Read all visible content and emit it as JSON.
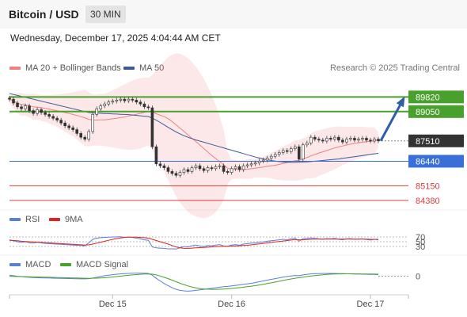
{
  "header": {
    "title": "Bitcoin / USD",
    "timeframe": "30 MIN",
    "datetime": "Wednesday, December 17, 2025 4:04:44 AM CET"
  },
  "main_legend": [
    {
      "label": "MA 20 + Bollinger Bands",
      "color": "#f08080"
    },
    {
      "label": "MA 50",
      "color": "#3c5a99"
    }
  ],
  "credit": "Research © 2025 Trading Central",
  "rsi_legend": [
    {
      "label": "RSI",
      "color": "#5b7fd6"
    },
    {
      "label": "9MA",
      "color": "#dd2222"
    }
  ],
  "macd_legend": [
    {
      "label": "MACD",
      "color": "#5b7fd6"
    },
    {
      "label": "MACD Signal",
      "color": "#4aa02c"
    }
  ],
  "chart_data": [
    {
      "type": "candlestick",
      "x_ticks": [
        "Dec 15",
        "Dec 16",
        "Dec 17"
      ],
      "ylim": [
        84000,
        92500
      ],
      "levels": [
        {
          "value": 89820,
          "label": "89820",
          "kind": "resistance",
          "color": "#4aa02c"
        },
        {
          "value": 89050,
          "label": "89050",
          "kind": "resistance",
          "color": "#4aa02c"
        },
        {
          "value": 87510,
          "label": "87510",
          "kind": "last-price",
          "color": "#333333"
        },
        {
          "value": 86440,
          "label": "86440",
          "kind": "pivot",
          "color": "#3b6fd8"
        },
        {
          "value": 85150,
          "label": "85150",
          "kind": "support",
          "color": "#e03c3c"
        },
        {
          "value": 84380,
          "label": "84380",
          "kind": "support",
          "color": "#e03c3c"
        }
      ],
      "close": [
        89700,
        89500,
        89300,
        89200,
        89350,
        89100,
        88950,
        89150,
        89000,
        88900,
        88800,
        88700,
        88600,
        88450,
        88300,
        88200,
        88100,
        87900,
        87700,
        87600,
        88000,
        88900,
        89200,
        89350,
        89450,
        89550,
        89600,
        89650,
        89700,
        89620,
        89700,
        89650,
        89550,
        89450,
        89300,
        89250,
        87200,
        86300,
        86200,
        86100,
        85900,
        85800,
        85700,
        85850,
        86000,
        85900,
        86100,
        86200,
        86050,
        85950,
        86100,
        86050,
        86150,
        86200,
        85900,
        85850,
        86050,
        86150,
        86000,
        86200,
        86250,
        86300,
        86350,
        86450,
        86500,
        86600,
        86700,
        86800,
        86900,
        87000,
        86950,
        87100,
        87200,
        86550,
        87300,
        87400,
        87700,
        87600,
        87550,
        87500,
        87650,
        87600,
        87700,
        87550,
        87450,
        87600,
        87650,
        87550,
        87600,
        87650,
        87550,
        87500,
        87600,
        87510
      ],
      "projection": {
        "from": 87510,
        "to": 89820
      },
      "ma50": [
        90000,
        89950,
        89900,
        89850,
        89800,
        89750,
        89700,
        89650,
        89600,
        89550,
        89500,
        89450,
        89400,
        89350,
        89300,
        89250,
        89200,
        89150,
        89100,
        89050,
        89000,
        88980,
        88970,
        88960,
        88950,
        88940,
        88930,
        88920,
        88910,
        88900,
        88890,
        88870,
        88850,
        88830,
        88810,
        88790,
        88700,
        88600,
        88480,
        88350,
        88220,
        88100,
        87980,
        87880,
        87780,
        87700,
        87630,
        87560,
        87500,
        87440,
        87380,
        87320,
        87260,
        87200,
        87140,
        87080,
        87020,
        86960,
        86900,
        86840,
        86780,
        86720,
        86660,
        86610,
        86560,
        86520,
        86480,
        86450,
        86420,
        86400,
        86390,
        86380,
        86380,
        86390,
        86400,
        86410,
        86420,
        86440,
        86460,
        86480,
        86500,
        86520,
        86540,
        86560,
        86590,
        86620,
        86650,
        86680,
        86710,
        86740,
        86770,
        86800,
        86830,
        86860
      ]
    },
    {
      "type": "line",
      "name": "RSI",
      "ylim": [
        0,
        100
      ],
      "levels": [
        {
          "value": 70,
          "label": "70"
        },
        {
          "value": 50,
          "label": "50"
        },
        {
          "value": 30,
          "label": "30"
        }
      ],
      "rsi": [
        58,
        54,
        50,
        47,
        50,
        46,
        44,
        48,
        45,
        43,
        42,
        41,
        40,
        39,
        38,
        37,
        36,
        35,
        34,
        33,
        45,
        60,
        65,
        67,
        68,
        69,
        70,
        70,
        71,
        68,
        70,
        68,
        65,
        62,
        58,
        56,
        28,
        24,
        23,
        22,
        20,
        20,
        19,
        25,
        30,
        28,
        33,
        36,
        32,
        30,
        34,
        33,
        36,
        38,
        32,
        31,
        36,
        38,
        35,
        40,
        42,
        44,
        45,
        48,
        49,
        52,
        54,
        56,
        58,
        60,
        58,
        62,
        65,
        52,
        63,
        64,
        66,
        64,
        62,
        60,
        63,
        62,
        64,
        60,
        58,
        62,
        63,
        60,
        61,
        62,
        59,
        57,
        60,
        58
      ],
      "ma9": [
        56,
        55,
        54,
        52,
        51,
        50,
        49,
        48,
        47,
        46,
        45,
        44,
        43,
        42,
        41,
        40,
        39,
        38,
        37,
        36,
        37,
        40,
        44,
        48,
        52,
        56,
        60,
        63,
        66,
        68,
        69,
        69,
        69,
        68,
        67,
        65,
        60,
        55,
        50,
        45,
        40,
        34,
        28,
        24,
        22,
        22,
        23,
        24,
        25,
        26,
        27,
        28,
        29,
        30,
        31,
        31,
        32,
        32,
        33,
        34,
        35,
        37,
        39,
        41,
        43,
        45,
        47,
        49,
        51,
        53,
        55,
        57,
        59,
        58,
        58,
        59,
        60,
        61,
        61,
        61,
        61,
        61,
        61,
        61,
        61,
        61,
        61,
        61,
        61,
        61,
        61,
        60,
        60,
        60
      ]
    },
    {
      "type": "line",
      "name": "MACD",
      "levels": [
        {
          "value": 0,
          "label": "0"
        }
      ],
      "macd": [
        20,
        10,
        0,
        -5,
        -15,
        -20,
        -25,
        -28,
        -30,
        -32,
        -34,
        -36,
        -38,
        -40,
        -42,
        -44,
        -46,
        -48,
        -50,
        -50,
        -45,
        -35,
        -20,
        -5,
        10,
        20,
        30,
        40,
        45,
        50,
        55,
        58,
        60,
        60,
        58,
        55,
        20,
        -40,
        -90,
        -140,
        -180,
        -220,
        -250,
        -270,
        -280,
        -285,
        -280,
        -270,
        -260,
        -250,
        -240,
        -230,
        -220,
        -210,
        -200,
        -195,
        -185,
        -175,
        -165,
        -155,
        -145,
        -135,
        -120,
        -105,
        -90,
        -75,
        -60,
        -45,
        -30,
        -15,
        -5,
        5,
        15,
        10,
        25,
        35,
        45,
        50,
        52,
        54,
        55,
        55,
        54,
        52,
        50,
        48,
        46,
        44,
        42,
        40,
        38,
        36,
        34,
        30
      ],
      "signal": [
        0,
        -2,
        -4,
        -6,
        -8,
        -10,
        -12,
        -14,
        -16,
        -18,
        -20,
        -22,
        -24,
        -26,
        -28,
        -30,
        -32,
        -34,
        -36,
        -38,
        -39,
        -38,
        -36,
        -32,
        -27,
        -21,
        -14,
        -6,
        2,
        10,
        18,
        25,
        32,
        38,
        42,
        45,
        40,
        25,
        5,
        -20,
        -45,
        -75,
        -105,
        -135,
        -160,
        -185,
        -205,
        -222,
        -235,
        -243,
        -248,
        -250,
        -250,
        -248,
        -245,
        -240,
        -234,
        -227,
        -219,
        -210,
        -200,
        -190,
        -179,
        -167,
        -154,
        -140,
        -126,
        -111,
        -96,
        -81,
        -66,
        -52,
        -38,
        -28,
        -17,
        -6,
        4,
        13,
        21,
        28,
        34,
        39,
        42,
        45,
        46,
        47,
        47,
        46,
        45,
        44,
        43,
        42,
        41,
        40
      ]
    }
  ]
}
